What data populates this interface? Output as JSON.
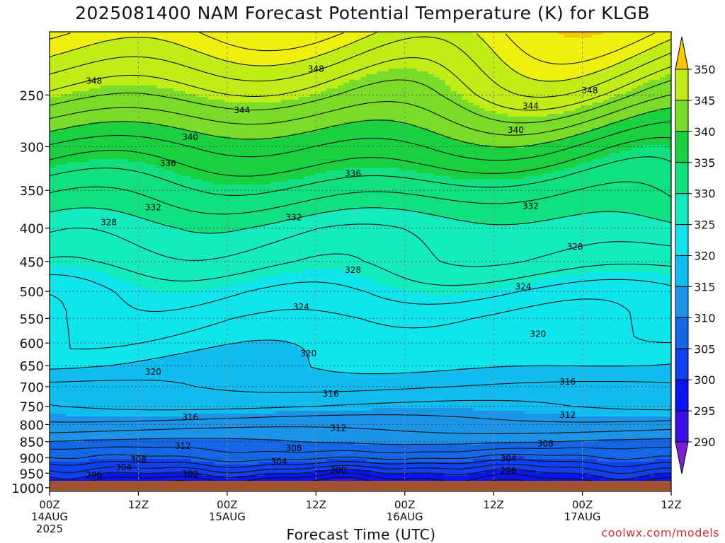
{
  "title": "2025081400 NAM Forecast Potential Temperature (K) for KLGB",
  "watermark": "coolwx.com/models",
  "chart_data": {
    "type": "heatmap",
    "title": "2025081400 NAM Forecast Potential Temperature (K) for KLGB",
    "xlabel": "Forecast Time (UTC)",
    "ylabel": "",
    "x_ticks": [
      {
        "label": "00Z",
        "sub1": "14AUG",
        "sub2": "2025"
      },
      {
        "label": "12Z",
        "sub1": "",
        "sub2": ""
      },
      {
        "label": "00Z",
        "sub1": "15AUG",
        "sub2": ""
      },
      {
        "label": "12Z",
        "sub1": "",
        "sub2": ""
      },
      {
        "label": "00Z",
        "sub1": "16AUG",
        "sub2": ""
      },
      {
        "label": "12Z",
        "sub1": "",
        "sub2": ""
      },
      {
        "label": "00Z",
        "sub1": "17AUG",
        "sub2": ""
      },
      {
        "label": "12Z",
        "sub1": "",
        "sub2": ""
      }
    ],
    "x_range_hours": [
      0,
      84
    ],
    "y_ticks": [
      250,
      300,
      350,
      400,
      450,
      500,
      550,
      600,
      650,
      700,
      750,
      800,
      850,
      900,
      950,
      1000
    ],
    "y_range_hpa": [
      200,
      1013
    ],
    "y_scale": "log",
    "surface_pressure_hpa": 1003,
    "grid": "dotted",
    "colorbar": {
      "levels": [
        285,
        290,
        295,
        300,
        305,
        310,
        315,
        320,
        325,
        330,
        335,
        340,
        345,
        350,
        355
      ],
      "labels": [
        290,
        295,
        300,
        305,
        310,
        315,
        320,
        325,
        330,
        335,
        340,
        345,
        350
      ],
      "colors": [
        "#7b1fd6",
        "#3a10e6",
        "#0a14f0",
        "#1040f0",
        "#1468e8",
        "#1c94e8",
        "#10bcf0",
        "#10e4ec",
        "#14ecc0",
        "#10e080",
        "#18d040",
        "#78dc28",
        "#c0ec18",
        "#f0f010",
        "#f8c808"
      ]
    },
    "profile": {
      "pressure_hpa": [
        1000,
        975,
        950,
        925,
        900,
        875,
        850,
        800,
        750,
        700,
        650,
        600,
        550,
        500,
        450,
        400,
        350,
        300,
        250,
        200
      ],
      "theta_k": [
        296,
        297,
        300,
        303,
        306,
        308,
        310,
        313,
        316,
        318,
        320,
        321,
        322,
        324,
        327,
        329,
        333,
        338,
        345,
        352
      ]
    },
    "contour_labels": [
      {
        "t": 6,
        "p": 238,
        "value": 348
      },
      {
        "t": 36,
        "p": 228,
        "value": 348
      },
      {
        "t": 73,
        "p": 246,
        "value": 348
      },
      {
        "t": 26,
        "p": 264,
        "value": 344
      },
      {
        "t": 65,
        "p": 260,
        "value": 344
      },
      {
        "t": 19,
        "p": 290,
        "value": 340
      },
      {
        "t": 63,
        "p": 283,
        "value": 340
      },
      {
        "t": 16,
        "p": 318,
        "value": 336
      },
      {
        "t": 41,
        "p": 330,
        "value": 336
      },
      {
        "t": 14,
        "p": 372,
        "value": 332
      },
      {
        "t": 33,
        "p": 385,
        "value": 332
      },
      {
        "t": 65,
        "p": 370,
        "value": 332
      },
      {
        "t": 8,
        "p": 392,
        "value": 328
      },
      {
        "t": 41,
        "p": 464,
        "value": 328
      },
      {
        "t": 71,
        "p": 427,
        "value": 328
      },
      {
        "t": 34,
        "p": 528,
        "value": 324
      },
      {
        "t": 64,
        "p": 492,
        "value": 324
      },
      {
        "t": 35,
        "p": 623,
        "value": 320
      },
      {
        "t": 66,
        "p": 581,
        "value": 320
      },
      {
        "t": 14,
        "p": 664,
        "value": 320
      },
      {
        "t": 38,
        "p": 718,
        "value": 316
      },
      {
        "t": 70,
        "p": 688,
        "value": 316
      },
      {
        "t": 19,
        "p": 779,
        "value": 316
      },
      {
        "t": 39,
        "p": 810,
        "value": 312
      },
      {
        "t": 70,
        "p": 774,
        "value": 312
      },
      {
        "t": 18,
        "p": 863,
        "value": 312
      },
      {
        "t": 33,
        "p": 870,
        "value": 308
      },
      {
        "t": 67,
        "p": 856,
        "value": 308
      },
      {
        "t": 12,
        "p": 905,
        "value": 308
      },
      {
        "t": 31,
        "p": 912,
        "value": 304
      },
      {
        "t": 62,
        "p": 902,
        "value": 304
      },
      {
        "t": 10,
        "p": 931,
        "value": 304
      },
      {
        "t": 6,
        "p": 956,
        "value": 296
      },
      {
        "t": 19,
        "p": 953,
        "value": 300
      },
      {
        "t": 39,
        "p": 940,
        "value": 300
      },
      {
        "t": 62,
        "p": 942,
        "value": 296
      }
    ]
  }
}
